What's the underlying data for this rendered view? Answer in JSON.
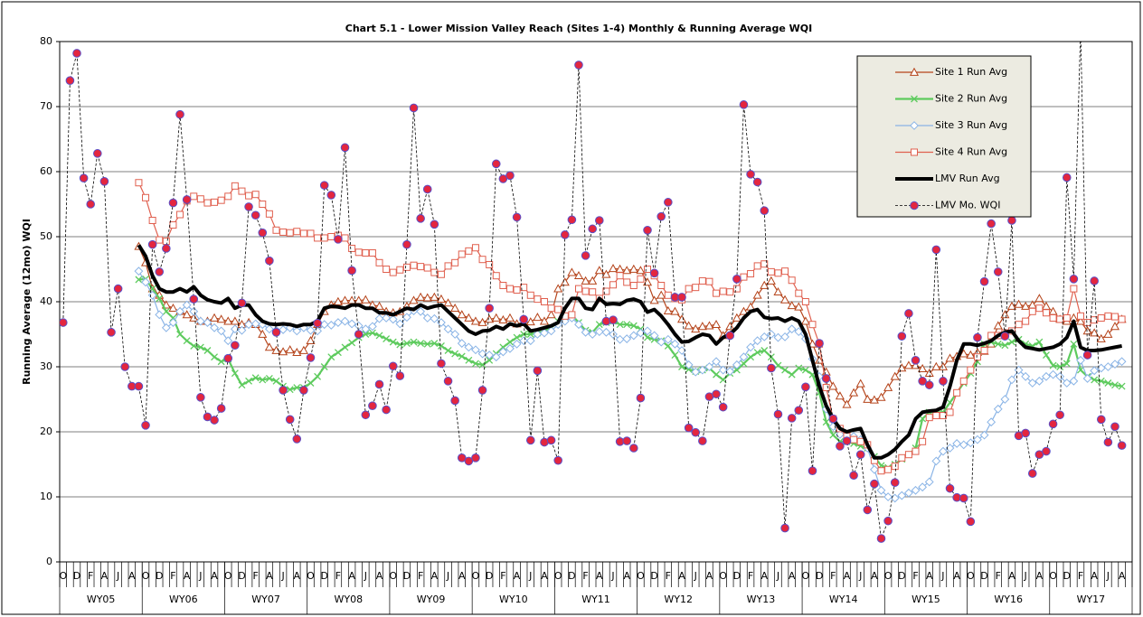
{
  "chart_data": {
    "type": "line",
    "title": "Chart 5.1 -  Lower Mission Valley Reach (Sites 1-4) Monthly & Running Average WQI",
    "y_label": "Running Average (12mo) WQI",
    "ylim": [
      0,
      80
    ],
    "yticks": [
      0,
      10,
      20,
      30,
      40,
      50,
      60,
      70,
      80
    ],
    "grid": true,
    "legend": "upper right",
    "categories": [
      "O",
      null,
      "D",
      null,
      "F",
      null,
      "A",
      null,
      "J",
      null,
      "A",
      null,
      "O",
      null,
      "D",
      null,
      "F",
      null,
      "A",
      null,
      "J",
      null,
      "A",
      null,
      "O",
      null,
      "D",
      null,
      "F",
      null,
      "A",
      null,
      "J",
      null,
      "A",
      null,
      "O",
      null,
      "D",
      null,
      "F",
      null,
      "A",
      null,
      "J",
      null,
      "A",
      null,
      "O",
      null,
      "D",
      null,
      "F",
      null,
      "A",
      null,
      "J",
      null,
      "A",
      null,
      "O",
      null,
      "D",
      null,
      "F",
      null,
      "A",
      null,
      "J",
      null,
      "A",
      null,
      "O",
      null,
      "D",
      null,
      "F",
      null,
      "A",
      null,
      "J",
      null,
      "A",
      null,
      "O",
      null,
      "D",
      null,
      "F",
      null,
      "A",
      null,
      "J",
      null,
      "A",
      null,
      "O",
      null,
      "D",
      null,
      "F",
      null,
      "A",
      null,
      "J",
      null,
      "A",
      null,
      "O",
      null,
      "D",
      null,
      "F",
      null,
      "A",
      null,
      "J",
      null,
      "A",
      null,
      "O",
      null,
      "D",
      null,
      "F",
      null,
      "A",
      null,
      "J",
      null,
      "A",
      null,
      "O",
      null,
      "D",
      null,
      "F",
      null,
      "A",
      null,
      "J",
      null,
      "A",
      null,
      "O",
      null,
      "D",
      null,
      "F",
      null,
      "A",
      null,
      "J",
      null,
      "A",
      null
    ],
    "x_groups": [
      "WY05",
      "WY06",
      "WY07",
      "WY08",
      "WY09",
      "WY10",
      "WY11",
      "WY12",
      "WY13",
      "WY14",
      "WY15",
      "WY16",
      "WY17"
    ],
    "series": [
      {
        "name": "Site 1 Run Avg",
        "color": "#b5441b",
        "marker": "triangle",
        "line_width": 1.2,
        "dashed": false,
        "values": [
          null,
          null,
          null,
          null,
          null,
          null,
          null,
          null,
          null,
          null,
          null,
          48.5,
          46,
          42,
          41,
          39.5,
          39,
          38.5,
          38,
          37.5,
          37,
          37,
          37.5,
          37.3,
          37,
          37,
          36.5,
          36.8,
          36.5,
          35,
          33,
          32.5,
          32.3,
          32.6,
          32.2,
          32.5,
          34,
          36.5,
          38.5,
          39.5,
          40,
          40.2,
          40.2,
          40.2,
          40.3,
          39.5,
          39.3,
          38.5,
          38.3,
          38.5,
          39.3,
          40.2,
          40.7,
          40.6,
          40.7,
          40.4,
          39.8,
          39,
          38,
          37.5,
          37,
          36.8,
          37.3,
          37.5,
          37.2,
          37.5,
          36.6,
          36.8,
          36.9,
          37.6,
          37,
          38,
          42,
          43,
          44.5,
          44,
          43.2,
          43.2,
          44.8,
          44.2,
          45.1,
          45,
          44.8,
          45,
          44.8,
          43,
          40.2,
          41,
          38.6,
          38.5,
          37.3,
          36.3,
          35.8,
          36.2,
          36.3,
          36.5,
          34.8,
          36.2,
          37.5,
          38.5,
          39.2,
          41,
          42.5,
          43.2,
          41.5,
          40.3,
          39.4,
          39.2,
          37,
          33.5,
          31,
          29.2,
          27,
          25.5,
          24.2,
          26,
          27.4,
          25,
          24.9,
          25.3,
          26.8,
          28.5,
          29.8,
          30.2,
          30.2,
          29.7,
          29,
          30,
          30,
          31.3,
          31.6,
          32,
          31.8,
          32.2,
          32.4,
          33.5,
          36.3,
          38,
          39.3,
          39.6,
          39.3,
          39.5,
          40.5,
          39.3,
          38.5,
          37.3,
          37,
          37.5,
          37,
          35.5,
          35.2,
          34.3,
          35,
          36.2,
          37.3,
          null
        ]
      },
      {
        "name": "Site 2 Run Avg",
        "color": "#5ecb5e",
        "marker": "x",
        "line_width": 2.2,
        "dashed": false,
        "values": [
          null,
          null,
          null,
          null,
          null,
          null,
          null,
          null,
          null,
          null,
          null,
          43.4,
          43.5,
          42,
          40.5,
          38.5,
          37.5,
          35,
          34,
          33.2,
          33,
          32.5,
          31.5,
          30.8,
          31.2,
          29,
          27.2,
          27.8,
          28.3,
          28,
          28.2,
          27.8,
          27,
          26.5,
          26.8,
          26.8,
          27.5,
          28.5,
          30,
          31.5,
          32.2,
          33,
          33.7,
          34.5,
          35,
          35.2,
          34.8,
          34.3,
          33.8,
          33.4,
          33.6,
          33.8,
          33.6,
          33.5,
          33.6,
          33.2,
          32.5,
          32,
          31.6,
          31,
          30.5,
          30.3,
          31,
          32,
          33,
          33.8,
          34.5,
          35,
          35,
          35.2,
          35.5,
          36,
          37,
          37.8,
          38,
          36.8,
          35.6,
          35.3,
          36.5,
          36.8,
          37,
          36.5,
          36.5,
          36.3,
          35.8,
          34.5,
          34.2,
          34,
          33.2,
          31.8,
          30,
          29.6,
          29.3,
          29.5,
          29.8,
          28.8,
          28,
          29,
          29.5,
          30.5,
          31.5,
          32.2,
          32.5,
          31.5,
          30.2,
          29.5,
          28.8,
          29.8,
          29.5,
          28.8,
          26,
          21.5,
          19.5,
          18.5,
          18.5,
          18.2,
          17.8,
          17.5,
          16.2,
          14.8,
          14.5,
          15,
          15.8,
          16.5,
          17.5,
          22,
          23,
          23,
          23,
          24.5,
          26,
          27.5,
          29,
          30.8,
          33.5,
          33.8,
          33.5,
          33.3,
          33.8,
          34.2,
          33.5,
          33.2,
          33.8,
          31.8,
          30.2,
          30,
          30.5,
          33.5,
          29.5,
          28.5,
          28,
          27.8,
          27.5,
          27.2,
          27,
          null
        ]
      },
      {
        "name": "Site 3 Run Avg",
        "color": "#8ab4e6",
        "marker": "diamond",
        "line_width": 1.2,
        "dashed": false,
        "values": [
          null,
          null,
          null,
          null,
          null,
          null,
          null,
          null,
          null,
          null,
          null,
          44.7,
          43,
          41,
          38,
          36,
          36.8,
          38.5,
          39.5,
          38.5,
          37,
          36.8,
          36,
          35.5,
          34,
          35.8,
          35.6,
          36.5,
          36.6,
          36.5,
          35.8,
          35.6,
          35.7,
          36,
          35.5,
          36,
          35.6,
          35.5,
          36.5,
          36.4,
          36.8,
          37,
          36.6,
          36.3,
          35.8,
          36.2,
          37.4,
          37.5,
          37.3,
          36.6,
          37.6,
          38.6,
          38.5,
          37.5,
          37.4,
          36.8,
          35.8,
          35,
          33.6,
          33,
          32.6,
          32,
          31.8,
          31.5,
          32.3,
          32.8,
          33.5,
          34,
          34,
          35,
          35.2,
          35.5,
          36.5,
          37,
          37.5,
          36.5,
          35.3,
          35,
          35.4,
          35.3,
          35,
          34.2,
          34.3,
          34.8,
          35.2,
          35.5,
          34.8,
          33.8,
          34.2,
          33.5,
          32.5,
          30.3,
          29.2,
          29.5,
          30,
          30.8,
          29.5,
          29.3,
          30.3,
          31.5,
          33,
          34,
          34.6,
          35,
          34.5,
          34.6,
          35.8,
          35.4,
          34.3,
          31.2,
          28.5,
          23.5,
          20.8,
          19.6,
          19.5,
          19.3,
          18.8,
          17.5,
          14.2,
          11,
          10,
          9.8,
          10.2,
          10.6,
          11,
          11.5,
          12.3,
          15.5,
          17,
          17.5,
          18.2,
          18,
          18.3,
          18.8,
          19.5,
          21.5,
          23.5,
          25,
          28,
          29.5,
          28.5,
          27.5,
          27.8,
          28.5,
          28.8,
          28.5,
          27.5,
          27.8,
          31,
          28.2,
          29.4,
          29.8,
          30,
          30.4,
          30.8,
          null
        ]
      },
      {
        "name": "Site 4 Run Avg",
        "color": "#e0604f",
        "marker": "square",
        "line_width": 1.2,
        "dashed": false,
        "values": [
          null,
          null,
          null,
          null,
          null,
          null,
          null,
          null,
          null,
          null,
          null,
          58.3,
          56,
          52.5,
          49.5,
          49.3,
          51.8,
          53.4,
          55.5,
          56.2,
          55.8,
          55.2,
          55.3,
          55.6,
          56.2,
          57.8,
          57,
          56.3,
          56.5,
          55,
          53.5,
          51,
          50.7,
          50.6,
          50.8,
          50.5,
          50.5,
          49.8,
          49.8,
          50,
          50.2,
          49.8,
          48.2,
          47.6,
          47.5,
          47.5,
          46,
          45,
          44.5,
          44.9,
          45.3,
          45.6,
          45.4,
          45.2,
          44.5,
          44.2,
          45.5,
          46,
          47.3,
          47.8,
          48.3,
          46.5,
          45.7,
          44,
          42.5,
          42,
          41.8,
          42.2,
          41,
          40.4,
          40,
          39,
          38.8,
          37.8,
          38,
          42,
          41.6,
          41.5,
          40.5,
          41.6,
          42.6,
          44,
          43,
          42.5,
          43.5,
          45,
          44,
          42.5,
          41,
          40.5,
          40.3,
          42,
          42.2,
          43.2,
          43.1,
          41.3,
          41.6,
          41.5,
          42,
          43.8,
          44.3,
          45.5,
          45.8,
          44.6,
          44.4,
          44.7,
          43.3,
          41.3,
          40,
          36.5,
          33.5,
          26.8,
          22,
          20.5,
          19.3,
          18.8,
          18.5,
          18,
          15.6,
          14,
          14.2,
          14.7,
          16,
          16.5,
          17,
          18.5,
          22.2,
          22.5,
          22.5,
          23,
          26,
          27.8,
          29.5,
          31.5,
          32.5,
          34.8,
          34.8,
          35.2,
          35.5,
          36.5,
          37,
          38.5,
          39,
          38.3,
          37.5,
          37.3,
          37.5,
          42,
          37.8,
          36.8,
          37.2,
          37.5,
          37.8,
          37.7,
          37.3,
          null
        ]
      },
      {
        "name": "LMV Run Avg",
        "color": "#000000",
        "marker": "none",
        "line_width": 4,
        "dashed": false,
        "values": [
          null,
          null,
          null,
          null,
          null,
          null,
          null,
          null,
          null,
          null,
          null,
          48.7,
          47,
          44,
          42,
          41.5,
          41.5,
          42,
          41.5,
          42.3,
          41,
          40.3,
          40,
          39.8,
          40.5,
          39,
          39.5,
          39.5,
          38,
          37,
          36.6,
          36.5,
          36.6,
          36.5,
          36.2,
          36.5,
          36.5,
          37,
          39,
          39.3,
          39.2,
          39,
          39.5,
          39.5,
          39,
          39,
          38.3,
          38.3,
          38,
          38.5,
          39,
          38.8,
          39.5,
          39,
          39.3,
          39.5,
          38.5,
          37.5,
          36.5,
          35.5,
          35,
          35.5,
          35.6,
          36.2,
          35.8,
          36.6,
          36.3,
          36.6,
          35.5,
          35.7,
          36,
          36.3,
          36.8,
          39,
          40.5,
          40.5,
          39,
          38.8,
          40.5,
          39.6,
          39.7,
          39.6,
          40.2,
          40.4,
          40,
          38.4,
          38.8,
          37.8,
          36.5,
          35,
          33.8,
          33.9,
          34.5,
          35,
          34.8,
          33.5,
          34.5,
          35,
          36,
          37.5,
          38.5,
          38.8,
          37.6,
          37.4,
          37.5,
          37,
          37.5,
          37,
          35,
          31,
          27,
          24,
          22,
          20.5,
          20,
          20.3,
          20.5,
          18,
          16,
          16,
          16.5,
          17.3,
          18.5,
          19.5,
          22,
          23,
          23.2,
          23.3,
          23.8,
          27,
          31,
          33.5,
          33.5,
          33.3,
          33.6,
          34,
          34.8,
          35.3,
          35.5,
          34,
          33,
          32.8,
          32.6,
          32.8,
          33,
          33.5,
          34.5,
          37,
          33,
          32.5,
          32.5,
          32.6,
          32.8,
          33,
          33.2,
          null
        ]
      },
      {
        "name": "LMV Mo. WQI",
        "color": "#000000",
        "marker": "circle",
        "marker_color": "#e3263f",
        "line_width": 0.8,
        "dashed": true,
        "values": [
          36.8,
          74,
          78.2,
          59,
          55,
          62.8,
          58.5,
          35.3,
          42,
          30,
          27,
          27,
          21,
          48.8,
          44.6,
          48.2,
          55.2,
          68.8,
          55.7,
          40.4,
          25.3,
          22.3,
          21.8,
          23.6,
          31.3,
          33.3,
          39.8,
          54.6,
          53.3,
          50.6,
          46.3,
          35.3,
          26.4,
          21.9,
          18.9,
          26.4,
          31.4,
          36.7,
          57.9,
          56.4,
          49.6,
          63.7,
          44.8,
          35,
          22.6,
          24,
          27.3,
          23.4,
          30.1,
          28.6,
          48.8,
          69.8,
          52.8,
          57.3,
          51.9,
          30.5,
          27.8,
          24.8,
          16,
          15.5,
          16,
          26.4,
          39,
          61.2,
          58.9,
          59.4,
          53,
          37.3,
          18.7,
          29.4,
          18.4,
          18.7,
          15.6,
          50.3,
          52.6,
          76.4,
          47.1,
          51.2,
          52.5,
          37,
          37.2,
          18.5,
          18.6,
          17.5,
          25.2,
          51,
          44.4,
          53.1,
          55.3,
          40.7,
          40.7,
          20.6,
          19.9,
          18.6,
          25.4,
          25.8,
          23.8,
          34.8,
          43.5,
          70.3,
          59.6,
          58.4,
          54,
          29.8,
          22.7,
          5.2,
          22.1,
          23.3,
          26.9,
          14,
          33.6,
          28.2,
          22,
          17.8,
          18.6,
          13.3,
          16.5,
          8,
          12,
          3.6,
          6.3,
          12.2,
          34.7,
          38.2,
          31,
          27.8,
          27.2,
          48,
          27.8,
          11.3,
          9.9,
          9.8,
          6.2,
          34.5,
          43.1,
          52,
          44.6,
          34.7,
          52.5,
          19.4,
          19.8,
          13.6,
          16.5,
          17,
          21.2,
          22.6,
          59.1,
          43.5,
          82,
          31.8,
          43.2,
          21.9,
          18.4,
          20.8,
          17.9,
          null
        ]
      }
    ]
  }
}
